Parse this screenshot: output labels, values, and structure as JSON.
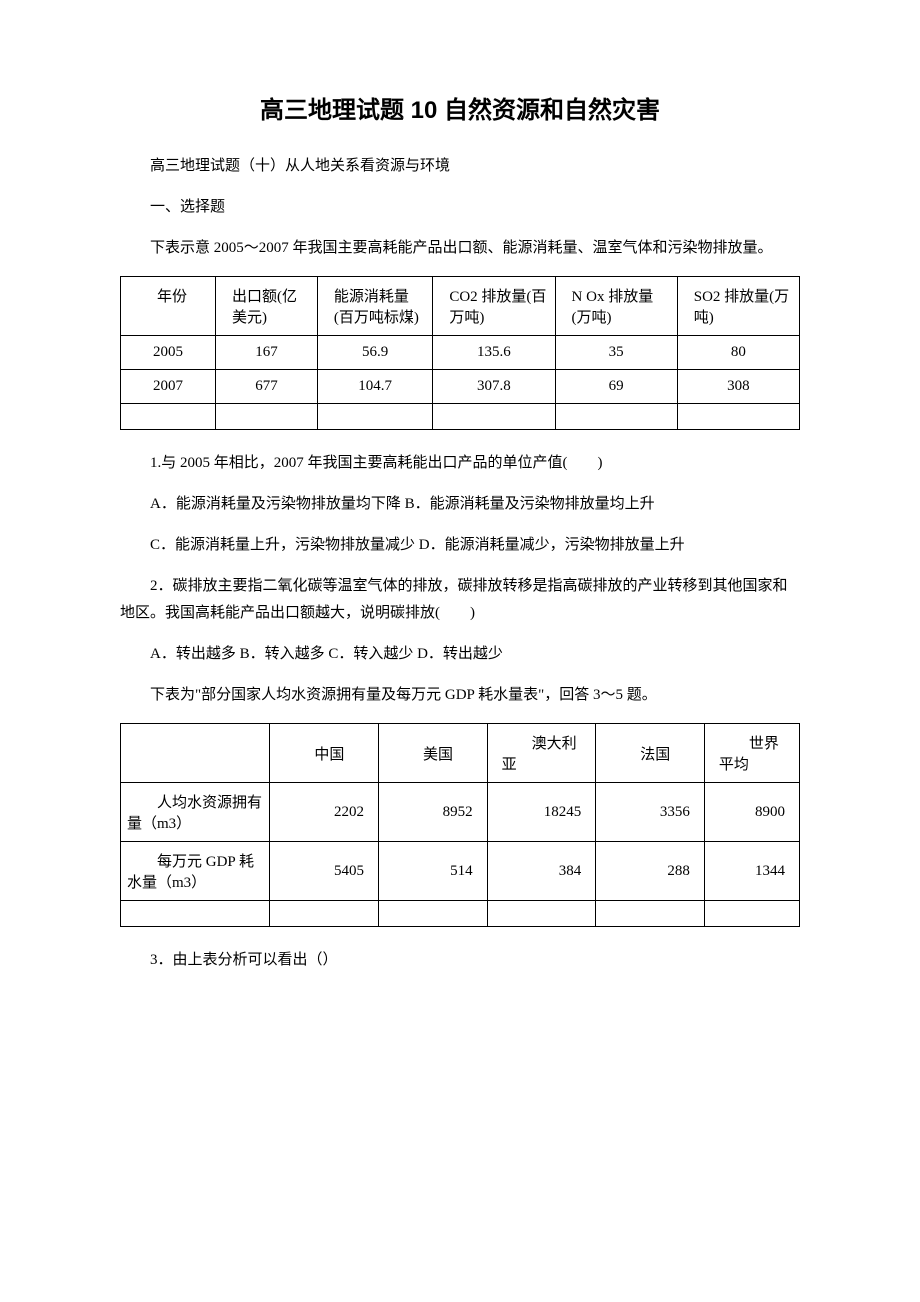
{
  "title": "高三地理试题 10 自然资源和自然灾害",
  "subtitle": "高三地理试题（十）从人地关系看资源与环境",
  "section_header": "一、选择题",
  "intro1": "下表示意 2005～2007 年我国主要高耗能产品出口额、能源消耗量、温室气体和污染物排放量。",
  "table1": {
    "headers": [
      "年份",
      "出口额(亿美元)",
      "能源消耗量(百万吨标煤)",
      "CO2\n排放量(百万吨)",
      "N Ox\n排放量(万吨)",
      "SO2\n排放量(万吨)"
    ],
    "rows": [
      [
        "2005",
        "167",
        "56.9",
        "135.6",
        "35",
        "80"
      ],
      [
        "2007",
        "677",
        "104.7",
        "307.8",
        "69",
        "308"
      ]
    ]
  },
  "q1": "1.与 2005 年相比，2007 年我国主要高耗能出口产品的单位产值(　　)",
  "q1_ab": "A．能源消耗量及污染物排放量均下降 B．能源消耗量及污染物排放量均上升",
  "q1_cd": "C．能源消耗量上升，污染物排放量减少 D．能源消耗量减少，污染物排放量上升",
  "q2": "2．碳排放主要指二氧化碳等温室气体的排放，碳排放转移是指高碳排放的产业转移到其他国家和地区。我国高耗能产品出口额越大，说明碳排放(　　)",
  "q2_opts": "A．转出越多  B．转入越多 C．转入越少  D．转出越少",
  "intro2": "下表为\"部分国家人均水资源拥有量及每万元 GDP 耗水量表\"，回答 3～5 题。",
  "table2": {
    "headers": [
      "",
      "中国",
      "美国",
      "澳大利亚",
      "法国",
      "世界平均"
    ],
    "row1_label": "人均水资源拥有量（m3）",
    "row1": [
      "2202",
      "8952",
      "18245",
      "3356",
      "8900"
    ],
    "row2_label": "每万元 GDP 耗水量（m3）",
    "row2": [
      "5405",
      "514",
      "384",
      "288",
      "1344"
    ]
  },
  "q3": "3．由上表分析可以看出（）"
}
